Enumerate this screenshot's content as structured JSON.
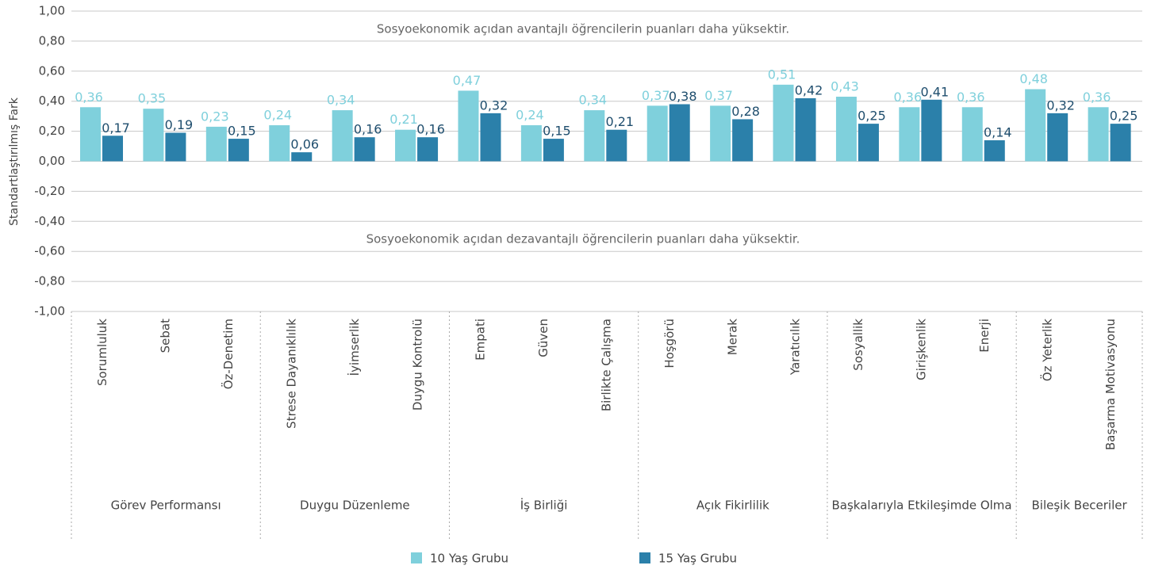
{
  "chart_data": {
    "type": "bar",
    "ylabel": "Standartlaştırılmış Fark",
    "annotations": [
      "Sosyoekonomik açıdan avantajlı öğrencilerin puanları daha yüksektir.",
      "Sosyoekonomik açıdan dezavantajlı öğrencilerin puanları daha yüksektir."
    ],
    "categories": [
      "Sorumluluk",
      "Sebat",
      "Öz-Denetim",
      "Strese Dayanıklılık",
      "İyimserlik",
      "Duygu Kontrolü",
      "Empati",
      "Güven",
      "Birlikte Çalışma",
      "Hoşgörü",
      "Merak",
      "Yaratıcılık",
      "Sosyallik",
      "Girişkenlik",
      "Enerji",
      "Öz Yeterlik",
      "Başarma Motivasyonu"
    ],
    "category_groups": [
      {
        "name": "Görev Performansı",
        "count": 3
      },
      {
        "name": "Duygu Düzenleme",
        "count": 3
      },
      {
        "name": "İş Birliği",
        "count": 3
      },
      {
        "name": "Açık Fikirlilik",
        "count": 3
      },
      {
        "name": "Başkalarıyla Etkileşimde Olma",
        "count": 3
      },
      {
        "name": "Bileşik Beceriler",
        "count": 2
      }
    ],
    "series": [
      {
        "name": "10 Yaş Grubu",
        "color": "#7fd0dc",
        "values": [
          0.36,
          0.35,
          0.23,
          0.24,
          0.34,
          0.21,
          0.47,
          0.24,
          0.34,
          0.37,
          0.37,
          0.51,
          0.43,
          0.36,
          0.36,
          0.48,
          0.36
        ],
        "value_labels": [
          "0,36",
          "0,35",
          "0,23",
          "0,24",
          "0,34",
          "0,21",
          "0,47",
          "0,24",
          "0,34",
          "0,37",
          "0,37",
          "0,51",
          "0,43",
          "0,36",
          "0,36",
          "0,48",
          "0,36"
        ]
      },
      {
        "name": "15 Yaş Grubu",
        "color": "#2b80aa",
        "values": [
          0.17,
          0.19,
          0.15,
          0.06,
          0.16,
          0.16,
          0.32,
          0.15,
          0.21,
          0.38,
          0.28,
          0.42,
          0.25,
          0.41,
          0.14,
          0.32,
          0.25
        ],
        "value_labels": [
          "0,17",
          "0,19",
          "0,15",
          "0,06",
          "0,16",
          "0,16",
          "0,32",
          "0,15",
          "0,21",
          "0,38",
          "0,28",
          "0,42",
          "0,25",
          "0,41",
          "0,14",
          "0,32",
          "0,25"
        ]
      }
    ],
    "ylim": [
      -1,
      1
    ],
    "yticks": [
      {
        "value": 1,
        "label": "1,00"
      },
      {
        "value": 0.8,
        "label": "0,80"
      },
      {
        "value": 0.6,
        "label": "0,60"
      },
      {
        "value": 0.4,
        "label": "0,40"
      },
      {
        "value": 0.2,
        "label": "0,20"
      },
      {
        "value": 0,
        "label": "0,00"
      },
      {
        "value": -0.2,
        "label": "-0,20"
      },
      {
        "value": -0.4,
        "label": "-0,40"
      },
      {
        "value": -0.6,
        "label": "-0,60"
      },
      {
        "value": -0.8,
        "label": "-0,80"
      },
      {
        "value": -1,
        "label": "-1,00"
      }
    ],
    "grid": true,
    "legend": "bottom"
  }
}
